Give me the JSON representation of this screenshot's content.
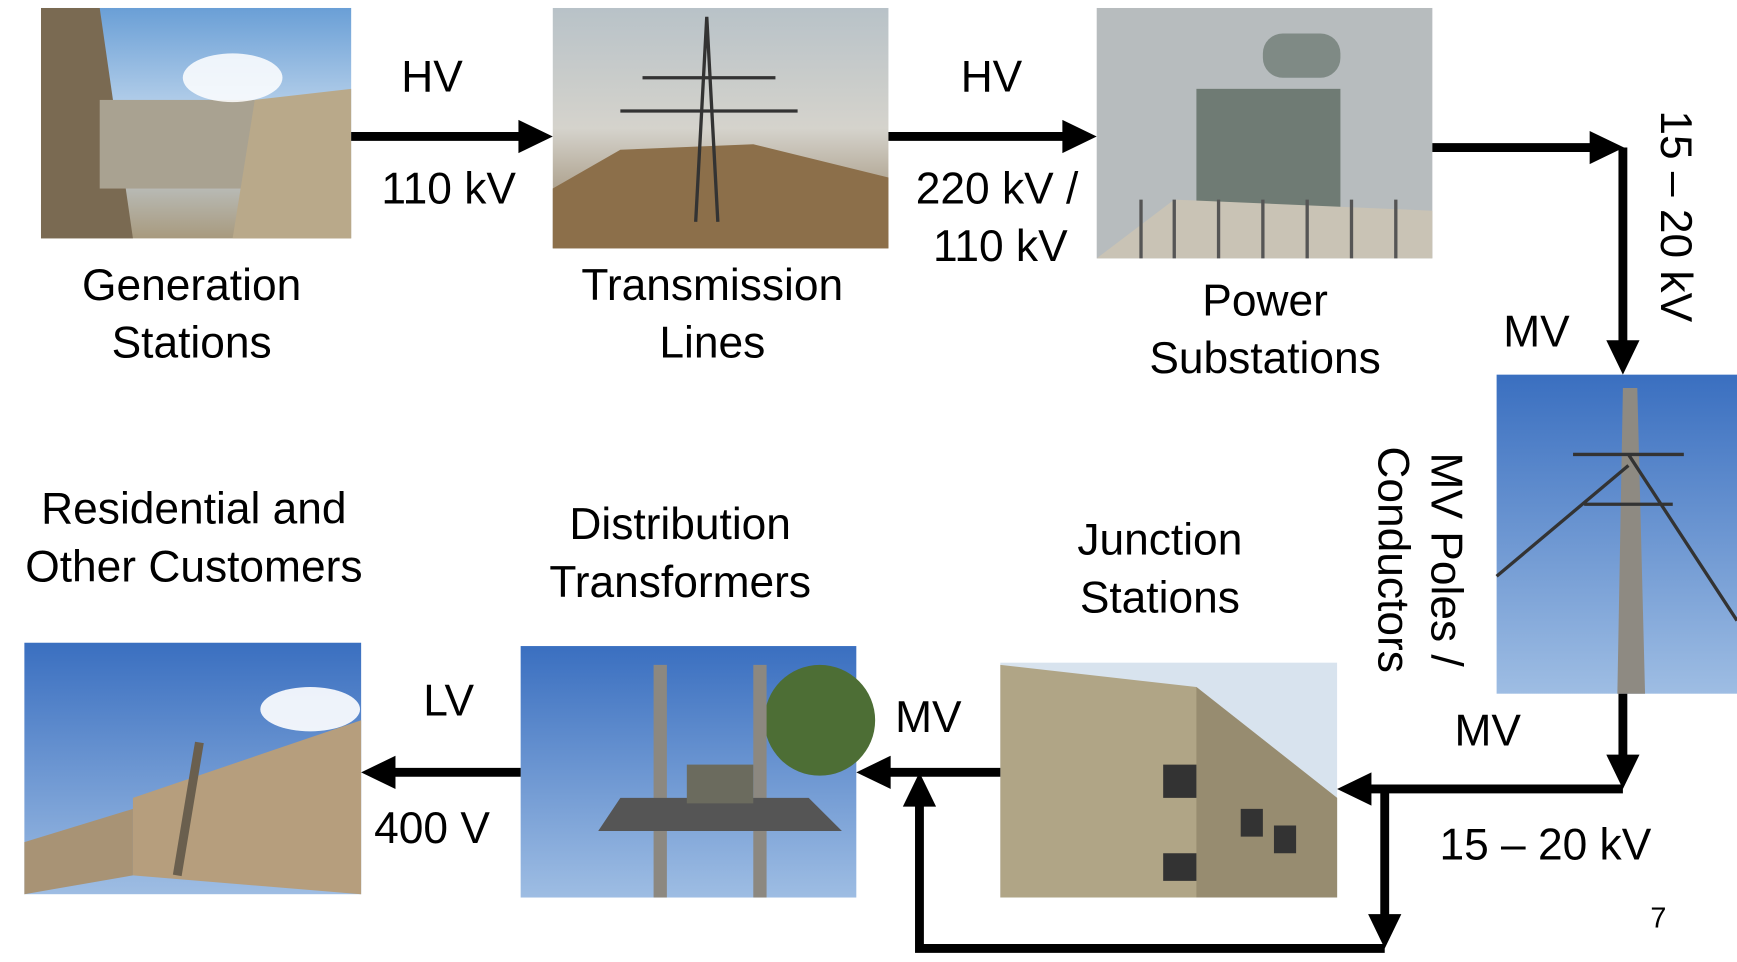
{
  "nodes": [
    {
      "label": [
        "Generation",
        "Stations"
      ]
    },
    {
      "label": [
        "Transmission",
        "Lines"
      ]
    },
    {
      "label": [
        "Power",
        "Substations"
      ]
    },
    {
      "label": [
        "MV Poles /",
        "Conductors"
      ]
    },
    {
      "label": [
        "Junction",
        "Stations"
      ]
    },
    {
      "label": [
        "Distribution",
        "Transformers"
      ]
    },
    {
      "label": [
        "Residential  and",
        "Other Customers"
      ]
    }
  ],
  "edges": [
    {
      "level": "HV",
      "voltage": [
        "110 kV"
      ]
    },
    {
      "level": "HV",
      "voltage": [
        "220 kV /",
        "110 kV"
      ]
    },
    {
      "level": "MV",
      "voltage": [
        "15 – 20 kV"
      ]
    },
    {
      "level": "MV",
      "voltage": [
        "15 – 20 kV"
      ]
    },
    {
      "level": "MV"
    },
    {
      "level": "LV",
      "voltage": [
        "400 V"
      ]
    }
  ],
  "page_number": "7"
}
